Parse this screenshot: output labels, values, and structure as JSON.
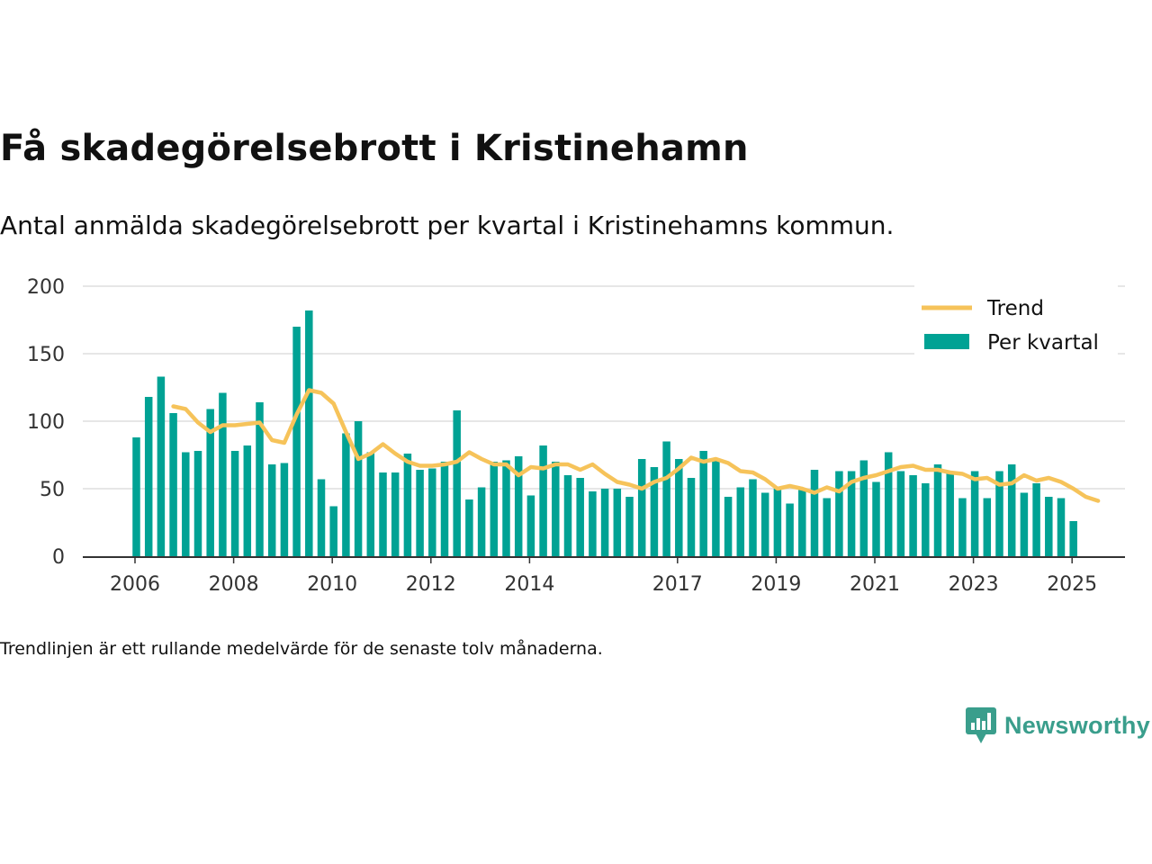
{
  "title": "Få skadegörelsebrott i Kristinehamn",
  "subtitle": "Antal anmälda skadegörelsebrott per kvartal i Kristinehamns kommun.",
  "footnote": "Trendlinjen är ett rullande medelvärde för de senaste tolv månaderna.",
  "brand": {
    "name": "Newsworthy",
    "icon": "newsworthy-logo-icon",
    "color": "#3a9e8c"
  },
  "colors": {
    "bars": "#00a294",
    "trend": "#f6c35a",
    "grid": "#dddddd",
    "axis": "#333333"
  },
  "chart_data": {
    "type": "bar",
    "title": "Få skadegörelsebrott i Kristinehamn",
    "subtitle": "Antal anmälda skadegörelsebrott per kvartal i Kristinehamns kommun.",
    "xlabel": "",
    "ylabel": "",
    "ylim": [
      0,
      200
    ],
    "yticks": [
      0,
      50,
      100,
      150,
      200
    ],
    "xticks": [
      2006,
      2008,
      2010,
      2012,
      2014,
      2017,
      2019,
      2021,
      2023,
      2025
    ],
    "grid": true,
    "legend_position": "top-right",
    "legend": [
      "Trend",
      "Per kvartal"
    ],
    "series": [
      {
        "name": "Per kvartal",
        "type": "bar",
        "start": [
          2006,
          1
        ],
        "values": [
          88,
          118,
          133,
          106,
          77,
          78,
          109,
          121,
          78,
          82,
          114,
          68,
          69,
          170,
          182,
          57,
          37,
          91,
          100,
          77,
          62,
          62,
          76,
          64,
          65,
          70,
          108,
          42,
          51,
          70,
          71,
          74,
          45,
          82,
          70,
          60,
          58,
          48,
          50,
          50,
          44,
          72,
          66,
          85,
          72,
          58,
          78,
          72,
          44,
          51,
          57,
          47,
          50,
          39,
          49,
          64,
          43,
          63,
          63,
          71,
          55,
          77,
          63,
          60,
          54,
          68,
          63,
          43,
          63,
          43,
          63,
          68,
          47,
          54,
          44,
          43,
          26
        ]
      },
      {
        "name": "Trend",
        "type": "line",
        "start": [
          2006,
          4
        ],
        "values": [
          111,
          109,
          99,
          92,
          97,
          97,
          98,
          99,
          86,
          84,
          105,
          123,
          121,
          113,
          92,
          72,
          76,
          83,
          76,
          70,
          67,
          67,
          68,
          70,
          77,
          72,
          68,
          68,
          60,
          66,
          65,
          68,
          68,
          64,
          68,
          61,
          55,
          53,
          50,
          55,
          58,
          65,
          73,
          70,
          72,
          69,
          63,
          62,
          57,
          50,
          52,
          50,
          47,
          51,
          48,
          55,
          58,
          60,
          63,
          66,
          67,
          64,
          64,
          62,
          61,
          57,
          58,
          53,
          54,
          60,
          56,
          58,
          55,
          50,
          44,
          41
        ]
      }
    ]
  }
}
